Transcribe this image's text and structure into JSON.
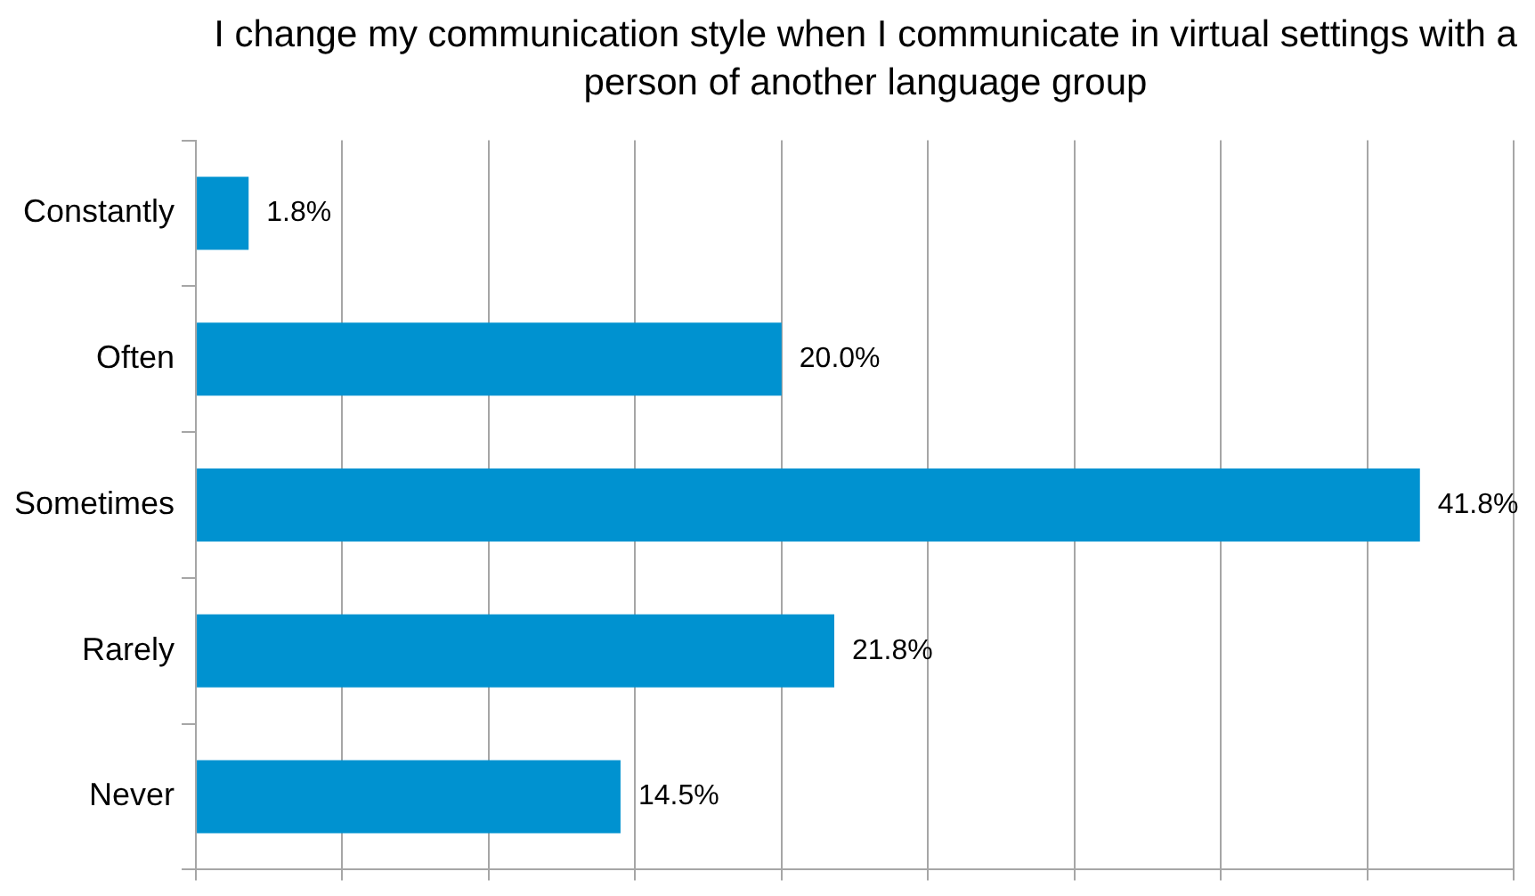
{
  "chart_data": {
    "type": "bar",
    "orientation": "horizontal",
    "title": "I change my communication style when I communicate in virtual settings with a person of another language group",
    "categories": [
      "Constantly",
      "Often",
      "Sometimes",
      "Rarely",
      "Never"
    ],
    "values": [
      1.8,
      20.0,
      41.8,
      21.8,
      14.5
    ],
    "value_labels": [
      "1.8%",
      "20.0%",
      "41.8%",
      "21.8%",
      "14.5%"
    ],
    "color": "#0092d0",
    "xlim": [
      0,
      45
    ],
    "xticks": [
      {
        "value": 0,
        "label": null
      },
      {
        "value": 5,
        "label": null
      },
      {
        "value": 10,
        "label": null
      },
      {
        "value": 15,
        "label": null
      },
      {
        "value": 20,
        "label": null
      },
      {
        "value": 25,
        "label": null
      },
      {
        "value": 30,
        "label": null
      },
      {
        "value": 35,
        "label": null
      },
      {
        "value": 40,
        "label": null
      },
      {
        "value": 45,
        "label": null
      }
    ],
    "tick_labels": "y",
    "grid": "x",
    "legend": false
  }
}
